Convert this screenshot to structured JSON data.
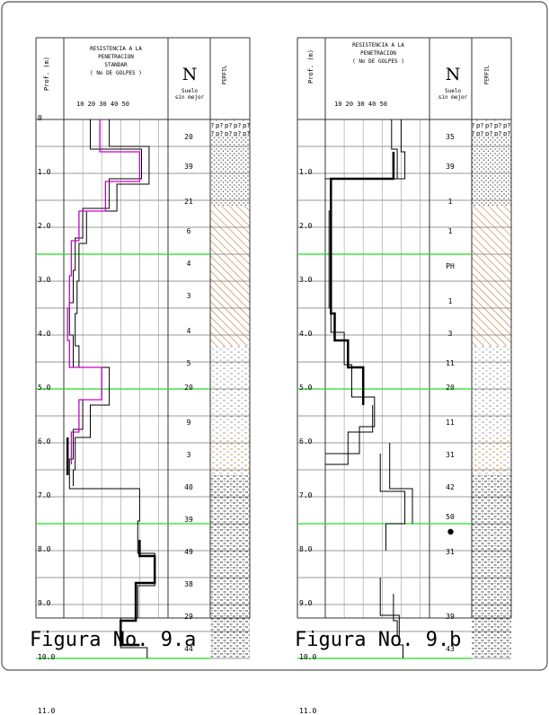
{
  "chart_data": [
    {
      "type": "diagram",
      "figure": "a",
      "caption": "Figura No. 9.a",
      "header": {
        "resistance_lines": [
          "RESISTENCIA A LA",
          "PENETRACION",
          "STANDAR",
          "( No DE GOLPES )"
        ],
        "x_ticks": "10  20  30  40  50",
        "depth_label": "Prof. (m)",
        "n_label": "N",
        "n_sub": [
          "Suelo",
          "sin mejor"
        ],
        "profile_label": "PERFIL"
      },
      "depth_ticks": [
        "0",
        "1.0",
        "2.0",
        "3.0",
        "4.0",
        "5.0",
        "6.0",
        "7.0",
        "8.0",
        "9.0",
        "10.0",
        "11.0"
      ],
      "n_values": [
        {
          "depth": 0.35,
          "label": "20"
        },
        {
          "depth": 0.9,
          "label": "39"
        },
        {
          "depth": 1.55,
          "label": "21"
        },
        {
          "depth": 2.1,
          "label": "6"
        },
        {
          "depth": 2.7,
          "label": "4"
        },
        {
          "depth": 3.3,
          "label": "3"
        },
        {
          "depth": 3.95,
          "label": "4"
        },
        {
          "depth": 4.55,
          "label": "5"
        },
        {
          "depth": 5.0,
          "label": "20"
        },
        {
          "depth": 5.65,
          "label": "9"
        },
        {
          "depth": 6.25,
          "label": "3"
        },
        {
          "depth": 6.85,
          "label": "40"
        },
        {
          "depth": 7.45,
          "label": "39"
        },
        {
          "depth": 8.05,
          "label": "49"
        },
        {
          "depth": 8.65,
          "label": "38"
        },
        {
          "depth": 9.25,
          "label": "29"
        },
        {
          "depth": 9.85,
          "label": "44"
        }
      ],
      "water_lines": [
        2.5,
        5.0,
        7.5,
        10.0
      ],
      "profile": [
        {
          "from": 0,
          "to": 0.3,
          "pattern": "question"
        },
        {
          "from": 0.3,
          "to": 1.6,
          "pattern": "dots"
        },
        {
          "from": 1.6,
          "to": 4.2,
          "pattern": "hatch"
        },
        {
          "from": 4.2,
          "to": 5.9,
          "pattern": "dash"
        },
        {
          "from": 5.9,
          "to": 6.6,
          "pattern": "orange-dash"
        },
        {
          "from": 6.6,
          "to": 10.0,
          "pattern": "dash-dark"
        }
      ],
      "curves": [
        {
          "color": "#000000",
          "width": 1,
          "points": [
            [
              14,
              0
            ],
            [
              14,
              0.55
            ],
            [
              41,
              0.55
            ],
            [
              41,
              1.1
            ],
            [
              24,
              1.1
            ],
            [
              24,
              1.65
            ],
            [
              10,
              1.65
            ],
            [
              10,
              2.2
            ],
            [
              6,
              2.2
            ],
            [
              6,
              2.8
            ],
            [
              5,
              2.8
            ],
            [
              5,
              3.4
            ],
            [
              3,
              3.4
            ],
            [
              3,
              4.0
            ],
            [
              5,
              4.0
            ],
            [
              5,
              4.6
            ],
            [
              20,
              4.6
            ],
            [
              20,
              5.2
            ],
            [
              10,
              5.2
            ],
            [
              10,
              5.75
            ],
            [
              5,
              5.75
            ],
            [
              5,
              6.3
            ],
            [
              3,
              6.3
            ],
            [
              3,
              6.85
            ],
            [
              40,
              6.85
            ],
            [
              40,
              7.45
            ],
            [
              39,
              7.45
            ],
            [
              39,
              8.05
            ],
            [
              48,
              8.05
            ],
            [
              48,
              8.65
            ],
            [
              39,
              8.65
            ],
            [
              39,
              9.25
            ],
            [
              30,
              9.25
            ],
            [
              30,
              9.8
            ],
            [
              44,
              9.8
            ],
            [
              44,
              10.0
            ]
          ]
        },
        {
          "color": "#000000",
          "width": 1,
          "points": [
            [
              24,
              0
            ],
            [
              24,
              0.5
            ],
            [
              45,
              0.5
            ],
            [
              45,
              1.2
            ],
            [
              28,
              1.2
            ],
            [
              28,
              1.7
            ],
            [
              12,
              1.7
            ],
            [
              12,
              2.3
            ],
            [
              8,
              2.3
            ],
            [
              8,
              3.0
            ],
            [
              7,
              3.0
            ],
            [
              7,
              3.6
            ],
            [
              6,
              3.6
            ],
            [
              6,
              4.2
            ],
            [
              8,
              4.2
            ],
            [
              8,
              4.6
            ],
            [
              24,
              4.6
            ],
            [
              24,
              5.3
            ],
            [
              14,
              5.3
            ],
            [
              14,
              5.9
            ],
            [
              6,
              5.9
            ],
            [
              6,
              6.5
            ],
            [
              5,
              6.5
            ],
            [
              5,
              6.8
            ]
          ]
        },
        {
          "color": "#000000",
          "width": 2.5,
          "points": [
            [
              2,
              5.9
            ],
            [
              2,
              6.6
            ]
          ]
        },
        {
          "color": "#000000",
          "width": 2.5,
          "points": [
            [
              40,
              7.8
            ],
            [
              40,
              8.1
            ],
            [
              48,
              8.1
            ],
            [
              48,
              8.6
            ],
            [
              38,
              8.6
            ],
            [
              38,
              9.3
            ],
            [
              30,
              9.3
            ],
            [
              30,
              9.75
            ],
            [
              40,
              9.75
            ]
          ]
        },
        {
          "color": "#cc00cc",
          "width": 1.3,
          "points": [
            [
              19,
              0
            ],
            [
              19,
              0.6
            ],
            [
              40,
              0.6
            ],
            [
              40,
              1.15
            ],
            [
              22,
              1.15
            ],
            [
              22,
              1.7
            ],
            [
              8,
              1.7
            ],
            [
              8,
              2.25
            ],
            [
              4,
              2.25
            ],
            [
              4,
              2.9
            ],
            [
              3,
              2.9
            ],
            [
              3,
              3.5
            ],
            [
              2,
              3.5
            ],
            [
              2,
              4.1
            ],
            [
              3,
              4.1
            ],
            [
              3,
              4.6
            ],
            [
              20,
              4.6
            ],
            [
              20,
              5.2
            ],
            [
              8,
              5.2
            ],
            [
              8,
              5.8
            ],
            [
              4,
              5.8
            ],
            [
              4,
              6.4
            ]
          ]
        }
      ]
    },
    {
      "type": "diagram",
      "figure": "b",
      "caption": "Figura No. 9.b",
      "header": {
        "resistance_lines": [
          "RESISTENCIA A LA",
          "PENETRACION",
          "( No DE GOLPES )"
        ],
        "x_ticks": "10  20  30  40  50",
        "depth_label": "Prof. (m)",
        "n_label": "N",
        "n_sub": [
          "Suelo",
          "sin mejor"
        ],
        "profile_label": "PERFIL"
      },
      "depth_ticks": [
        "1.0",
        "2.0",
        "3.0",
        "4.0",
        "5.0",
        "6.0",
        "7.0",
        "8.0",
        "9.0",
        "10.0",
        "11.0"
      ],
      "n_values": [
        {
          "depth": 0.35,
          "label": "35"
        },
        {
          "depth": 0.9,
          "label": "39"
        },
        {
          "depth": 1.55,
          "label": "1"
        },
        {
          "depth": 2.1,
          "label": "1"
        },
        {
          "depth": 2.75,
          "label": "PH"
        },
        {
          "depth": 3.4,
          "label": "1"
        },
        {
          "depth": 4.0,
          "label": "3"
        },
        {
          "depth": 4.55,
          "label": "11"
        },
        {
          "depth": 5.0,
          "label": "20"
        },
        {
          "depth": 5.65,
          "label": "11"
        },
        {
          "depth": 6.25,
          "label": "31"
        },
        {
          "depth": 6.85,
          "label": "42"
        },
        {
          "depth": 7.4,
          "label": "50"
        },
        {
          "depth": 8.05,
          "label": "31"
        },
        {
          "depth": 9.25,
          "label": "39"
        },
        {
          "depth": 9.85,
          "label": "43"
        }
      ],
      "water_lines": [
        2.5,
        5.0,
        7.5,
        10.0
      ],
      "marker": {
        "depth": 7.65
      },
      "profile": [
        {
          "from": 0,
          "to": 0.3,
          "pattern": "question"
        },
        {
          "from": 0.3,
          "to": 1.6,
          "pattern": "dots"
        },
        {
          "from": 1.6,
          "to": 4.2,
          "pattern": "hatch"
        },
        {
          "from": 4.2,
          "to": 5.9,
          "pattern": "dash"
        },
        {
          "from": 5.9,
          "to": 6.6,
          "pattern": "orange-dash"
        },
        {
          "from": 6.6,
          "to": 10.0,
          "pattern": "dash-dark"
        }
      ],
      "curves": [
        {
          "color": "#000000",
          "width": 1,
          "points": [
            [
              35,
              0
            ],
            [
              35,
              0.55
            ],
            [
              38,
              0.55
            ],
            [
              38,
              1.1
            ],
            [
              3,
              1.1
            ],
            [
              3,
              1.7
            ],
            [
              2,
              1.7
            ],
            [
              2,
              2.3
            ],
            [
              2,
              2.3
            ],
            [
              2,
              3.5
            ],
            [
              3,
              3.5
            ],
            [
              3,
              3.95
            ],
            [
              10,
              3.95
            ],
            [
              10,
              4.55
            ],
            [
              14,
              4.55
            ],
            [
              14,
              5.15
            ],
            [
              26,
              5.15
            ],
            [
              26,
              5.7
            ],
            [
              18,
              5.7
            ],
            [
              18,
              6.2
            ],
            [
              0,
              6.2
            ]
          ]
        },
        {
          "color": "#000000",
          "width": 1,
          "points": [
            [
              40,
              0
            ],
            [
              40,
              0.6
            ],
            [
              42,
              0.6
            ],
            [
              42,
              1.1
            ],
            [
              0,
              1.1
            ]
          ]
        },
        {
          "color": "#000000",
          "width": 1,
          "points": [
            [
              25,
              5.3
            ],
            [
              25,
              5.8
            ],
            [
              12,
              5.8
            ],
            [
              12,
              6.4
            ],
            [
              0,
              6.4
            ]
          ]
        },
        {
          "color": "#000000",
          "width": 2.5,
          "points": [
            [
              36,
              0.6
            ],
            [
              36,
              1.1
            ],
            [
              3,
              1.1
            ],
            [
              3,
              3.6
            ],
            [
              5,
              3.6
            ],
            [
              5,
              4.1
            ],
            [
              12,
              4.1
            ],
            [
              12,
              4.6
            ],
            [
              20,
              4.6
            ],
            [
              20,
              5.3
            ]
          ]
        },
        {
          "color": "#000000",
          "width": 1,
          "points": [
            [
              29,
              6.2
            ],
            [
              29,
              6.9
            ],
            [
              42,
              6.9
            ],
            [
              42,
              7.5
            ],
            [
              32,
              7.5
            ],
            [
              32,
              8.0
            ]
          ]
        },
        {
          "color": "#000000",
          "width": 1,
          "points": [
            [
              34,
              6.0
            ],
            [
              34,
              6.85
            ],
            [
              46,
              6.85
            ],
            [
              46,
              7.5
            ]
          ]
        },
        {
          "color": "#000000",
          "width": 1,
          "points": [
            [
              29,
              8.5
            ],
            [
              29,
              9.2
            ],
            [
              39,
              9.2
            ],
            [
              39,
              9.75
            ],
            [
              41,
              9.75
            ],
            [
              41,
              10.0
            ]
          ]
        },
        {
          "color": "#000000",
          "width": 1,
          "points": [
            [
              36,
              8.8
            ],
            [
              36,
              9.3
            ],
            [
              38,
              9.3
            ],
            [
              38,
              9.6
            ]
          ]
        }
      ]
    }
  ]
}
